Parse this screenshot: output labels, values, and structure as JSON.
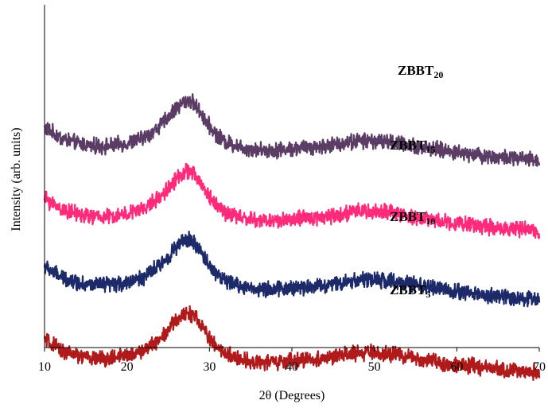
{
  "chart_data": {
    "type": "line",
    "title": "",
    "xlabel": "2θ (Degrees)",
    "ylabel": "Intensity (arb. units)",
    "xlim": [
      10,
      70
    ],
    "xticks": [
      10,
      20,
      30,
      40,
      50,
      60,
      70
    ],
    "y_ticks_shown": false,
    "grid": false,
    "legend": "none (series labeled directly on curves)",
    "x": [
      10,
      12,
      14,
      16,
      18,
      20,
      22,
      24,
      25,
      26,
      27,
      27.5,
      28,
      29,
      30,
      31,
      32,
      34,
      36,
      38,
      40,
      42,
      44,
      46,
      48,
      50,
      52,
      54,
      56,
      58,
      60,
      62,
      64,
      66,
      68,
      70
    ],
    "series": [
      {
        "name": "ZBBT20",
        "label_main": "ZBBT",
        "label_sub": "20",
        "color": "#5a3c64",
        "values": [
          0.82,
          0.74,
          0.7,
          0.68,
          0.68,
          0.7,
          0.74,
          0.83,
          0.9,
          0.97,
          1.02,
          1.03,
          1.01,
          0.93,
          0.83,
          0.76,
          0.71,
          0.67,
          0.65,
          0.65,
          0.66,
          0.67,
          0.68,
          0.7,
          0.72,
          0.72,
          0.71,
          0.69,
          0.67,
          0.65,
          0.63,
          0.62,
          0.6,
          0.59,
          0.58,
          0.57
        ]
      },
      {
        "name": "ZBBT15",
        "label_main": "ZBBT",
        "label_sub": "15",
        "color": "#ff2a7a",
        "values": [
          0.82,
          0.74,
          0.7,
          0.68,
          0.68,
          0.7,
          0.74,
          0.83,
          0.9,
          0.97,
          1.02,
          1.03,
          1.01,
          0.93,
          0.83,
          0.76,
          0.71,
          0.67,
          0.65,
          0.65,
          0.66,
          0.67,
          0.68,
          0.7,
          0.72,
          0.72,
          0.71,
          0.69,
          0.67,
          0.65,
          0.63,
          0.62,
          0.6,
          0.59,
          0.58,
          0.57
        ]
      },
      {
        "name": "ZBBT10",
        "label_main": "ZBBT",
        "label_sub": "10",
        "color": "#1c2a6a",
        "values": [
          0.82,
          0.74,
          0.7,
          0.68,
          0.68,
          0.7,
          0.74,
          0.83,
          0.9,
          0.97,
          1.02,
          1.03,
          1.01,
          0.93,
          0.83,
          0.76,
          0.71,
          0.67,
          0.65,
          0.65,
          0.66,
          0.67,
          0.68,
          0.7,
          0.72,
          0.72,
          0.71,
          0.69,
          0.67,
          0.65,
          0.63,
          0.62,
          0.6,
          0.59,
          0.58,
          0.57
        ]
      },
      {
        "name": "ZBBT5",
        "label_main": "ZBBT",
        "label_sub": "5",
        "color": "#b01a1a",
        "values": [
          0.82,
          0.74,
          0.7,
          0.68,
          0.68,
          0.7,
          0.74,
          0.83,
          0.9,
          0.97,
          1.02,
          1.03,
          1.01,
          0.93,
          0.83,
          0.76,
          0.71,
          0.67,
          0.65,
          0.65,
          0.66,
          0.67,
          0.68,
          0.7,
          0.72,
          0.72,
          0.71,
          0.69,
          0.67,
          0.65,
          0.63,
          0.62,
          0.6,
          0.59,
          0.58,
          0.57
        ]
      }
    ]
  }
}
